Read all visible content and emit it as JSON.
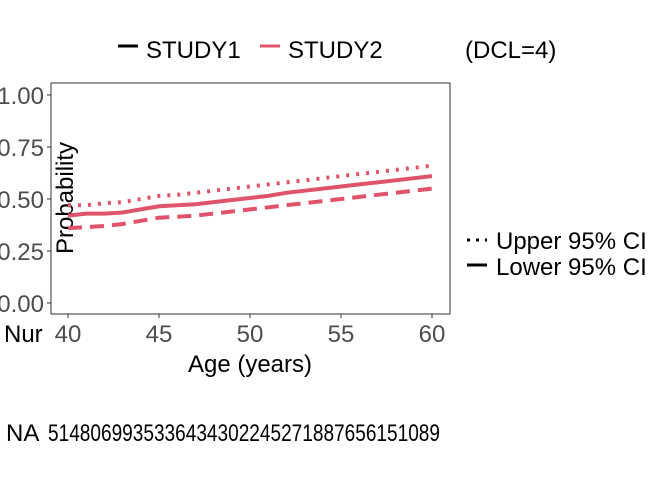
{
  "chart_data": {
    "type": "line",
    "title": "",
    "xlabel": "Age (years)",
    "ylabel": "Probability",
    "xlim": [
      39,
      61
    ],
    "ylim": [
      -0.05,
      1.05
    ],
    "x_ticks": [
      40,
      45,
      50,
      55,
      60
    ],
    "x_tick_labels": [
      "40",
      "45",
      "50",
      "55",
      "60"
    ],
    "y_ticks": [
      0.0,
      0.25,
      0.5,
      0.75,
      1.0
    ],
    "y_tick_labels": [
      "0.00",
      "0.25",
      "0.50",
      "0.75",
      "1.00"
    ],
    "grid": false,
    "legend_top": {
      "placement": "top",
      "entries": [
        {
          "name": "STUDY1",
          "color": "#000000"
        },
        {
          "name": "STUDY2",
          "color": "#df536b"
        }
      ],
      "note": "(DCL=4)"
    },
    "legend_right": {
      "placement": "right",
      "entries": [
        {
          "name": "Upper 95% CI",
          "style": "dotted"
        },
        {
          "name": "Lower 95% CI",
          "style": "dashed"
        }
      ]
    },
    "series": [
      {
        "name": "STUDY2",
        "color": "#df536b",
        "line_style": "solid",
        "x": [
          40,
          41,
          42,
          43,
          44,
          45,
          46,
          47,
          48,
          49,
          50,
          51,
          52,
          53,
          54,
          55,
          56,
          57,
          58,
          59,
          60
        ],
        "values": [
          0.42,
          0.43,
          0.43,
          0.435,
          0.45,
          0.465,
          0.47,
          0.475,
          0.485,
          0.495,
          0.505,
          0.515,
          0.53,
          0.54,
          0.55,
          0.56,
          0.57,
          0.58,
          0.59,
          0.6,
          0.61
        ]
      },
      {
        "name": "Upper 95% CI",
        "color": "#df536b",
        "line_style": "dotted",
        "x": [
          40,
          41,
          42,
          43,
          44,
          45,
          46,
          47,
          48,
          49,
          50,
          51,
          52,
          53,
          54,
          55,
          56,
          57,
          58,
          59,
          60
        ],
        "values": [
          0.47,
          0.47,
          0.48,
          0.485,
          0.5,
          0.515,
          0.52,
          0.53,
          0.54,
          0.55,
          0.56,
          0.57,
          0.58,
          0.59,
          0.6,
          0.61,
          0.62,
          0.63,
          0.64,
          0.65,
          0.66
        ]
      },
      {
        "name": "Lower 95% CI",
        "color": "#df536b",
        "line_style": "dashed",
        "x": [
          40,
          41,
          42,
          43,
          44,
          45,
          46,
          47,
          48,
          49,
          50,
          51,
          52,
          53,
          54,
          55,
          56,
          57,
          58,
          59,
          60
        ],
        "values": [
          0.36,
          0.365,
          0.37,
          0.38,
          0.395,
          0.41,
          0.415,
          0.42,
          0.43,
          0.44,
          0.45,
          0.46,
          0.47,
          0.48,
          0.49,
          0.5,
          0.51,
          0.52,
          0.53,
          0.54,
          0.55
        ]
      }
    ],
    "risk_table": {
      "row_label_left": "Nur",
      "row_label": "NA",
      "text": "5148069935336434302245271887656151089"
    }
  }
}
